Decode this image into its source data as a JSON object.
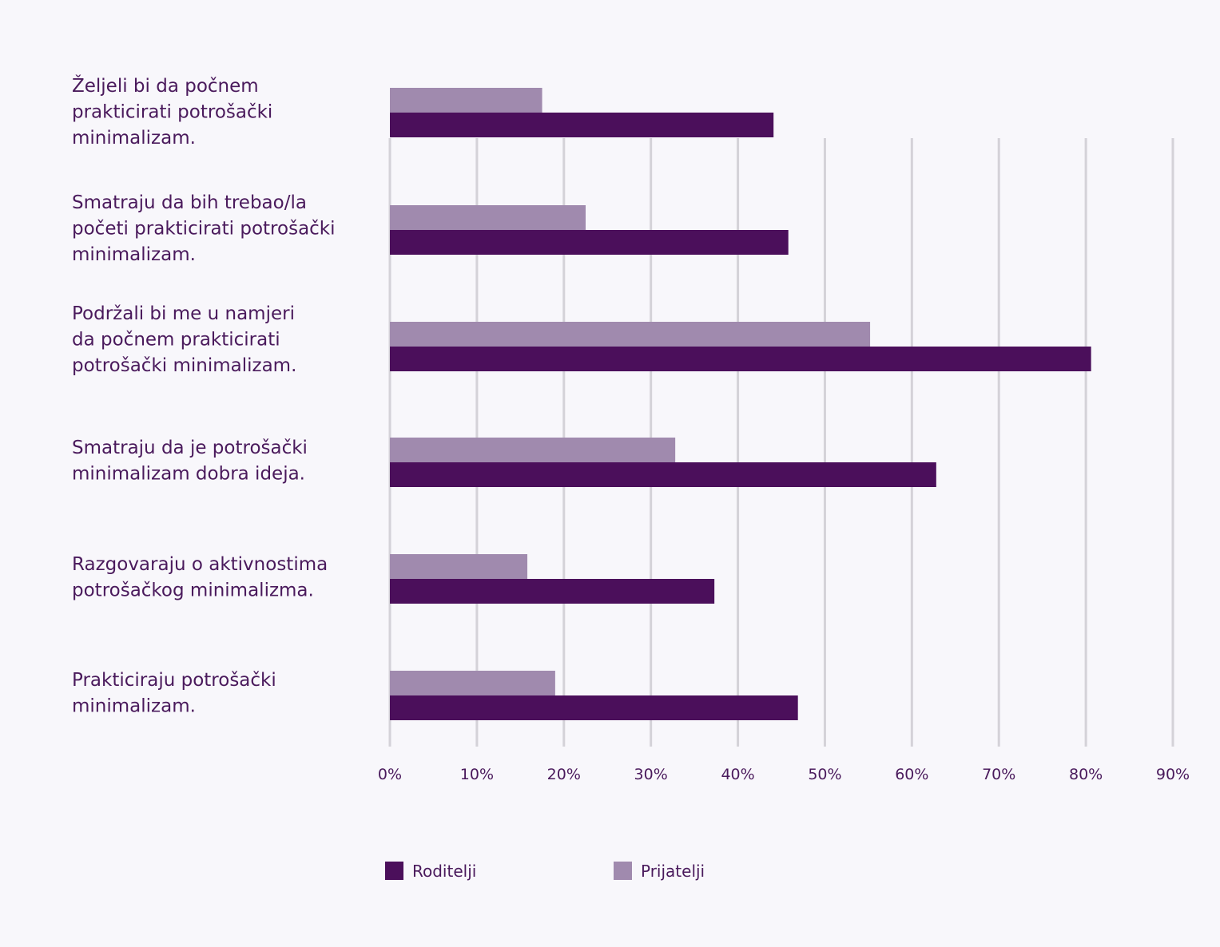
{
  "chart_data": {
    "type": "bar",
    "orientation": "horizontal",
    "categories": [
      [
        "Željeli bi da počnem",
        "prakticirati potrošački",
        "minimalizam."
      ],
      [
        "Smatraju da bih trebao/la",
        "početi prakticirati potrošački",
        "minimalizam."
      ],
      [
        "Podržali bi me u namjeri",
        "da počnem prakticirati",
        "potrošački minimalizam."
      ],
      [
        "Smatraju da je potrošački",
        "minimalizam dobra ideja."
      ],
      [
        "Razgovaraju o aktivnostima",
        "potrošačkog minimalizma."
      ],
      [
        "Prakticiraju potrošački",
        "minimalizam."
      ]
    ],
    "series": [
      {
        "name": "Prijatelji",
        "color": "#a08aae",
        "values": [
          17.5,
          22.5,
          55.2,
          32.8,
          15.8,
          19.0
        ]
      },
      {
        "name": "Roditelji",
        "color": "#4b0f5b",
        "values": [
          44.1,
          45.8,
          80.6,
          62.8,
          37.3,
          46.9
        ]
      }
    ],
    "legend": [
      {
        "name": "Roditelji",
        "color": "#4b0f5b"
      },
      {
        "name": "Prijatelji",
        "color": "#a08aae"
      }
    ],
    "xlim": [
      0,
      90
    ],
    "xticks": [
      "0%",
      "10%",
      "20%",
      "30%",
      "40%",
      "50%",
      "60%",
      "70%",
      "80%",
      "90%"
    ],
    "grid": true,
    "gridColor": "#d4d2d8",
    "legend_position": "bottom"
  }
}
